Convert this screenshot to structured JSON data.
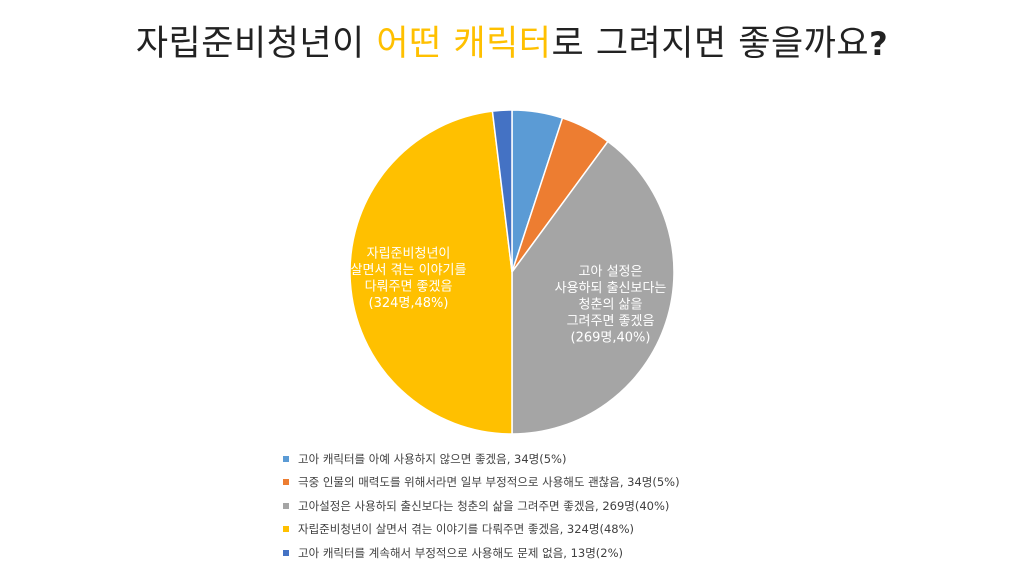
{
  "title": {
    "part1": "자립준비청년이 ",
    "highlight": "어떤 캐릭터",
    "part2": "로 그려지면 좋을까요",
    "mark": "?",
    "highlight_color": "#FFC000"
  },
  "chart_data": {
    "type": "pie",
    "slices": [
      {
        "label": "고아 캐릭터를 아예 사용하지 않으면 좋겠음, 34명(5%)",
        "count": 34,
        "percent": 5,
        "color": "#5B9BD5"
      },
      {
        "label": "극중 인물의 매력도를 위해서라면 일부 부정적으로 사용해도 괜찮음, 34명(5%)",
        "count": 34,
        "percent": 5,
        "color": "#ED7D31"
      },
      {
        "label": "고아설정은 사용하되 출신보다는 청춘의 삶을 그려주면 좋겠음, 269명(40%)",
        "count": 269,
        "percent": 40,
        "color": "#A5A5A5"
      },
      {
        "label": "자립준비청년이 살면서 겪는 이야기를 다뤄주면 좋겠음, 324명(48%)",
        "count": 324,
        "percent": 48,
        "color": "#FFC000"
      },
      {
        "label": "고아 캐릭터를 계속해서 부정적으로 사용해도 문제 없음, 13명(2%)",
        "count": 13,
        "percent": 2,
        "color": "#4472C4"
      }
    ],
    "data_labels": [
      {
        "slice": 2,
        "lines": [
          "고아 설정은",
          "사용하되 출신보다는",
          "청춘의 삶을",
          "그려주면 좋겠음",
          "(269명,40%)"
        ]
      },
      {
        "slice": 3,
        "lines": [
          "자립준비청년이",
          "살면서 겪는 이야기를",
          "다뤄주면 좋겠음",
          "(324명,48%)"
        ]
      }
    ],
    "legend_position": "bottom"
  }
}
